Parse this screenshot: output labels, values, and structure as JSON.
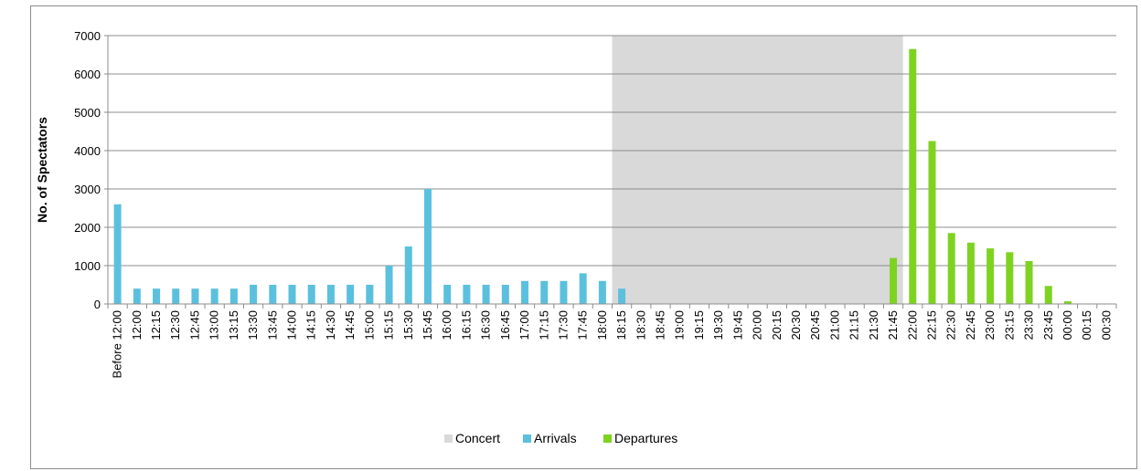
{
  "chart_data": {
    "type": "bar",
    "categories": [
      "Before 12:00",
      "12:00",
      "12:15",
      "12:30",
      "12:45",
      "13:00",
      "13:15",
      "13:30",
      "13:45",
      "14:00",
      "14:15",
      "14:30",
      "14:45",
      "15:00",
      "15:15",
      "15:30",
      "15:45",
      "16:00",
      "16:15",
      "16:30",
      "16:45",
      "17:00",
      "17:15",
      "17:30",
      "17:45",
      "18:00",
      "18:15",
      "18:30",
      "18:45",
      "19:00",
      "19:15",
      "19:30",
      "19:45",
      "20:00",
      "20:15",
      "20:30",
      "20:45",
      "21:00",
      "21:15",
      "21:30",
      "21:45",
      "22:00",
      "22:15",
      "22:30",
      "22:45",
      "23:00",
      "23:15",
      "23:30",
      "23:45",
      "00:00",
      "00:15",
      "00:30"
    ],
    "series": [
      {
        "name": "Arrivals",
        "color": "#5bc0de",
        "values": [
          2600,
          400,
          400,
          400,
          400,
          400,
          400,
          500,
          500,
          500,
          500,
          500,
          500,
          500,
          1000,
          1500,
          3000,
          500,
          500,
          500,
          500,
          600,
          600,
          600,
          800,
          600,
          400,
          0,
          0,
          0,
          0,
          0,
          0,
          0,
          0,
          0,
          0,
          0,
          0,
          0,
          0,
          0,
          0,
          0,
          0,
          0,
          0,
          0,
          0,
          0,
          0,
          0
        ]
      },
      {
        "name": "Departures",
        "color": "#7ed321",
        "values": [
          0,
          0,
          0,
          0,
          0,
          0,
          0,
          0,
          0,
          0,
          0,
          0,
          0,
          0,
          0,
          0,
          0,
          0,
          0,
          0,
          0,
          0,
          0,
          0,
          0,
          0,
          0,
          0,
          0,
          0,
          0,
          0,
          0,
          0,
          0,
          0,
          0,
          0,
          0,
          0,
          1200,
          6650,
          4250,
          1850,
          1600,
          1450,
          1350,
          1120,
          470,
          70,
          0,
          0
        ]
      }
    ],
    "concert": {
      "name": "Concert",
      "color": "#d9d9d9",
      "start_category": "18:00",
      "end_category": "21:45"
    },
    "ylabel": "No. of Spectators",
    "xlabel": "",
    "ylim": [
      0,
      7000
    ],
    "yticks": [
      0,
      1000,
      2000,
      3000,
      4000,
      5000,
      6000,
      7000
    ],
    "grid": "horizontal",
    "legend": {
      "placement": "bottom",
      "entries": [
        "Concert",
        "Arrivals",
        "Departures"
      ]
    }
  }
}
